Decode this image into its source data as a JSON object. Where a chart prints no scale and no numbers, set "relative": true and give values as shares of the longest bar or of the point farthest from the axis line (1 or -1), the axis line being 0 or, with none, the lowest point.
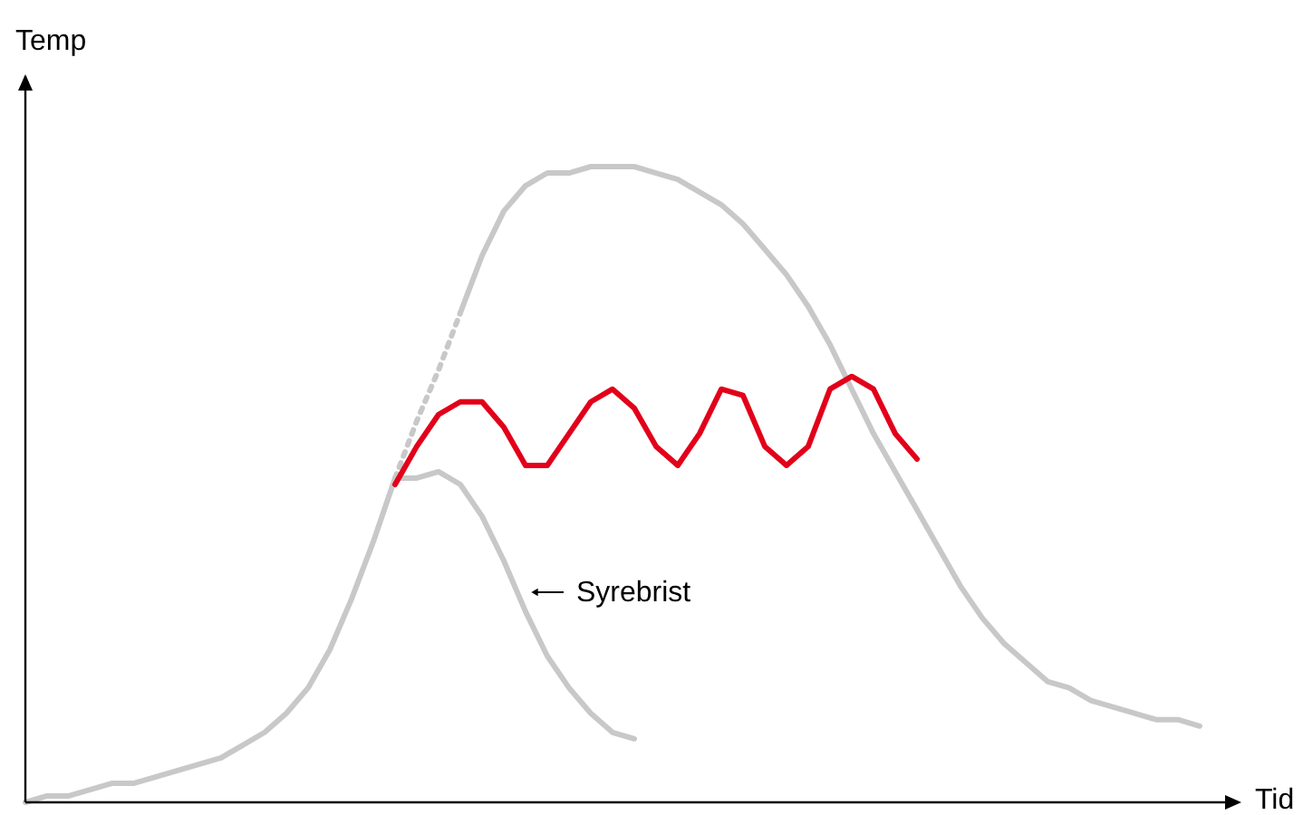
{
  "chart_data": {
    "type": "line",
    "relative": true,
    "xlabel": "Tid",
    "ylabel": "Temp",
    "categories": [
      null,
      null,
      null,
      null,
      null,
      null,
      null,
      null,
      null,
      null,
      null,
      null,
      null,
      null,
      null,
      null,
      null,
      null,
      null,
      null,
      null,
      null,
      null,
      null,
      null,
      null,
      null,
      null,
      null,
      null,
      null,
      null,
      null,
      null,
      null,
      null,
      null,
      null,
      null,
      null,
      null,
      null,
      null,
      null,
      null,
      null,
      null,
      null,
      null,
      null,
      null,
      null,
      null,
      null,
      null
    ],
    "series": [
      {
        "color": "#c8c8c8",
        "line_style": "solid",
        "values": [
          0,
          0.01,
          0.01,
          0.02,
          0.03,
          0.03,
          0.04,
          0.05,
          0.06,
          0.07,
          0.09,
          0.11,
          0.14,
          0.18,
          0.24,
          0.32,
          0.41,
          0.51,
          null,
          null,
          null,
          null,
          null,
          null,
          null,
          null,
          null,
          null,
          null,
          null,
          null,
          null,
          null,
          null,
          null,
          null,
          null,
          null,
          null,
          null,
          null,
          null,
          null,
          null,
          null,
          null,
          null,
          null,
          null,
          null,
          null,
          null,
          null,
          null,
          null
        ]
      },
      {
        "color": "#c8c8c8",
        "line_style": "dotted",
        "values": [
          null,
          null,
          null,
          null,
          null,
          null,
          null,
          null,
          null,
          null,
          null,
          null,
          null,
          null,
          null,
          null,
          null,
          0.51,
          0.6,
          0.68,
          0.77,
          null,
          null,
          null,
          null,
          null,
          null,
          null,
          null,
          null,
          null,
          null,
          null,
          null,
          null,
          null,
          null,
          null,
          null,
          null,
          null,
          null,
          null,
          null,
          null,
          null,
          null,
          null,
          null,
          null,
          null,
          null,
          null,
          null,
          null
        ]
      },
      {
        "color": "#c8c8c8",
        "line_style": "solid",
        "values": [
          null,
          null,
          null,
          null,
          null,
          null,
          null,
          null,
          null,
          null,
          null,
          null,
          null,
          null,
          null,
          null,
          null,
          null,
          null,
          null,
          0.77,
          0.86,
          0.93,
          0.97,
          0.99,
          0.99,
          1,
          1,
          1,
          0.99,
          0.98,
          0.96,
          0.94,
          0.91,
          0.87,
          0.83,
          0.78,
          0.72,
          0.65,
          0.58,
          0.52,
          0.46,
          0.4,
          0.34,
          0.29,
          0.25,
          0.22,
          0.19,
          0.18,
          0.16,
          0.15,
          0.14,
          0.13,
          0.13,
          0.12
        ]
      },
      {
        "color": "#c8c8c8",
        "line_style": "solid",
        "values": [
          null,
          null,
          null,
          null,
          null,
          null,
          null,
          null,
          null,
          null,
          null,
          null,
          null,
          null,
          null,
          null,
          null,
          0.51,
          0.51,
          0.52,
          0.5,
          0.45,
          0.38,
          0.3,
          0.23,
          0.18,
          0.14,
          0.11,
          0.1,
          null,
          null,
          null,
          null,
          null,
          null,
          null,
          null,
          null,
          null,
          null,
          null,
          null,
          null,
          null,
          null,
          null,
          null,
          null,
          null,
          null,
          null,
          null,
          null,
          null,
          null
        ]
      },
      {
        "color": "#e2001a",
        "line_style": "solid",
        "values": [
          null,
          null,
          null,
          null,
          null,
          null,
          null,
          null,
          null,
          null,
          null,
          null,
          null,
          null,
          null,
          null,
          null,
          0.5,
          0.56,
          0.61,
          0.63,
          0.63,
          0.59,
          0.53,
          0.53,
          0.58,
          0.63,
          0.65,
          0.62,
          0.56,
          0.53,
          0.58,
          0.65,
          0.64,
          0.56,
          0.53,
          0.56,
          0.65,
          0.67,
          0.65,
          0.58,
          0.54,
          null,
          null,
          null,
          null,
          null,
          null,
          null,
          null,
          null,
          null,
          null,
          null,
          null
        ]
      }
    ],
    "annotations": [
      "Syrebrist"
    ]
  }
}
